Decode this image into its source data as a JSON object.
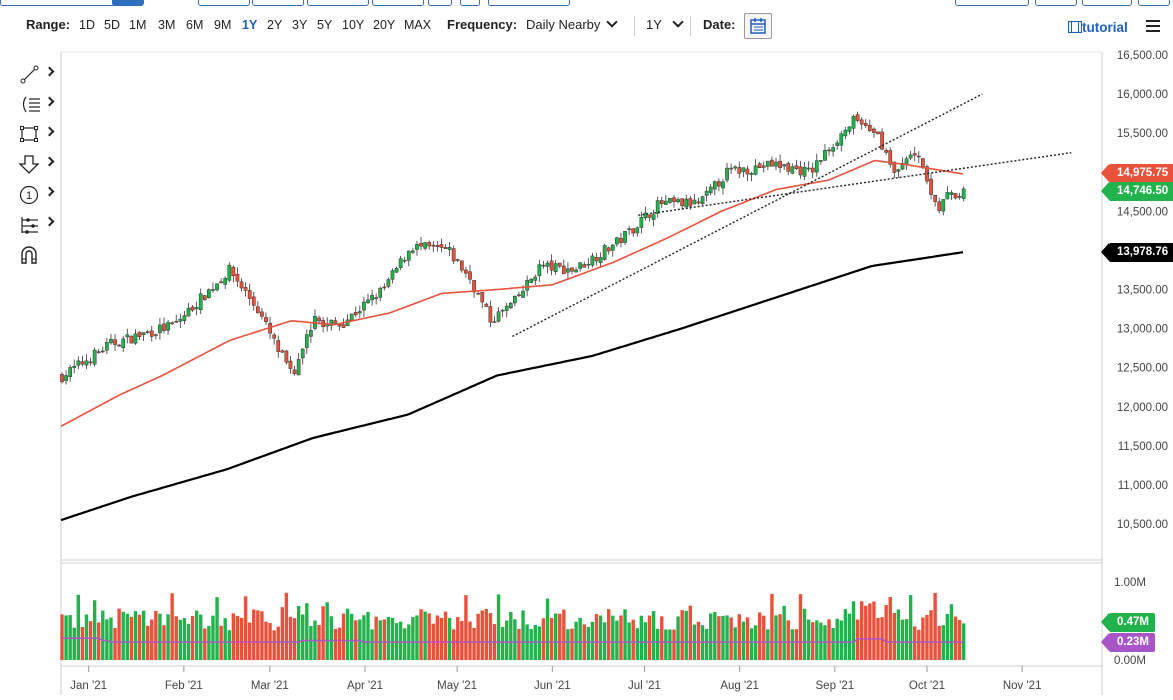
{
  "toolbar": {
    "range_label": "Range:",
    "ranges": [
      "1D",
      "5D",
      "1M",
      "3M",
      "6M",
      "9M",
      "1Y",
      "2Y",
      "3Y",
      "5Y",
      "10Y",
      "20Y",
      "MAX"
    ],
    "active_range": "1Y",
    "frequency_label": "Frequency:",
    "frequency_value": "Daily Nearby",
    "period_value": "1Y",
    "date_label": "Date:",
    "tutorial_label": "tutorial"
  },
  "icons": {
    "calendar": "calendar-icon",
    "menu": "hamburger-menu-icon",
    "tutorial": "film-icon",
    "tools": [
      "trendline-tool-icon",
      "fibonacci-tool-icon",
      "rectangle-tool-icon",
      "arrow-down-tool-icon",
      "number-marker-tool-icon",
      "measure-tool-icon",
      "magnet-icon"
    ]
  },
  "colors": {
    "up": "#22b24c",
    "down": "#e8513a",
    "ma_fast": "#e8513a",
    "ma_slow": "#000000",
    "volume_avg": "#a855c8",
    "accent": "#1f5fbf"
  },
  "price_tags": {
    "ma_fast": "14,975.75",
    "last": "14,746.50",
    "ma_slow": "13,978.76",
    "volume": "0.47M",
    "volume_avg": "0.23M"
  },
  "chart_data": {
    "type": "candlestick",
    "price_axis": {
      "ylim": [
        10000,
        16500
      ],
      "ticks": [
        "16,500.00",
        "16,000.00",
        "15,500.00",
        "15,000.00",
        "14,500.00",
        "14,000.00",
        "13,500.00",
        "13,000.00",
        "12,500.00",
        "12,000.00",
        "11,500.00",
        "11,000.00",
        "10,500.00"
      ]
    },
    "volume_axis": {
      "ylim": [
        0,
        1.0
      ],
      "ticks": [
        "1.00M",
        "0.50M",
        "0.00M"
      ]
    },
    "x_axis": {
      "ticks": [
        "Jan '21",
        "Feb '21",
        "Mar '21",
        "Apr '21",
        "May '21",
        "Jun '21",
        "Jul '21",
        "Aug '21",
        "Sep '21",
        "Oct '21",
        "Nov '21"
      ]
    },
    "series": [
      {
        "kind": "moving_average_fast",
        "x": [
          "2020-12-23",
          "2021-01-11",
          "2021-01-25",
          "2021-02-16",
          "2021-03-08",
          "2021-03-22",
          "2021-04-09",
          "2021-04-26",
          "2021-05-14",
          "2021-06-01",
          "2021-06-21",
          "2021-07-08",
          "2021-07-26",
          "2021-08-13",
          "2021-08-30",
          "2021-09-14",
          "2021-09-24",
          "2021-10-13"
        ],
        "values": [
          11750,
          12150,
          12400,
          12850,
          13100,
          13050,
          13200,
          13450,
          13500,
          13560,
          13850,
          14150,
          14500,
          14780,
          14900,
          15150,
          15100,
          14975.75
        ]
      },
      {
        "kind": "moving_average_slow",
        "x": [
          "2020-12-23",
          "2021-01-15",
          "2021-02-15",
          "2021-03-15",
          "2021-04-15",
          "2021-05-14",
          "2021-06-14",
          "2021-07-13",
          "2021-08-13",
          "2021-09-13",
          "2021-10-13"
        ],
        "values": [
          10550,
          10850,
          11200,
          11600,
          11900,
          12400,
          12650,
          13000,
          13400,
          13800,
          13978.76
        ]
      },
      {
        "kind": "trendline",
        "points": [
          {
            "x": "2021-05-19",
            "y": 12900
          },
          {
            "x": "2021-10-19",
            "y": 16000
          }
        ]
      },
      {
        "kind": "trendline",
        "points": [
          {
            "x": "2021-06-29",
            "y": 14450
          },
          {
            "x": "2021-11-17",
            "y": 15250
          }
        ]
      },
      {
        "kind": "last_price",
        "value": 14746.5
      },
      {
        "kind": "volume_last",
        "value": 0.47
      },
      {
        "kind": "volume_average",
        "value": 0.23
      }
    ]
  }
}
